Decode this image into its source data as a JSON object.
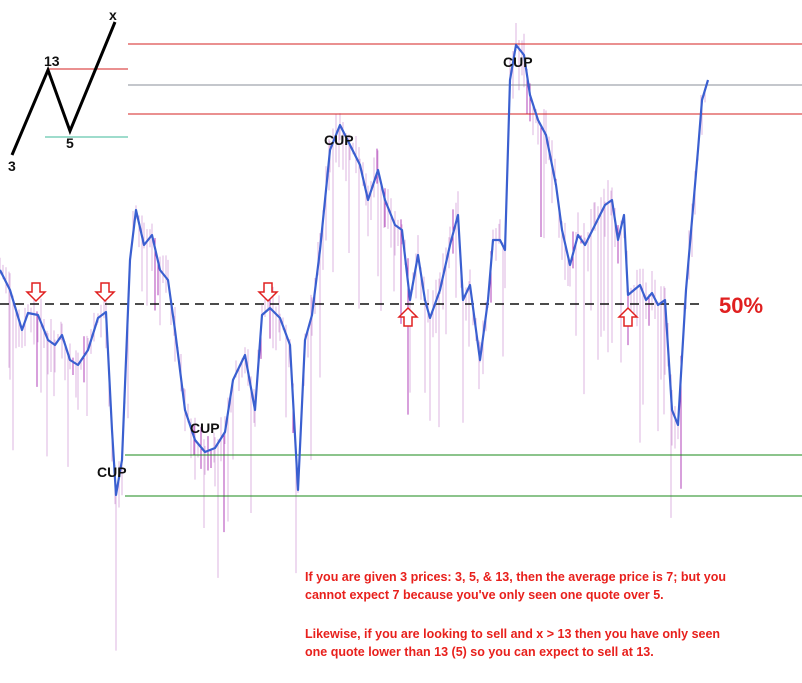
{
  "inset": {
    "labels": {
      "x": "x",
      "top": "13",
      "bottom": "5",
      "start": "3"
    }
  },
  "cups": [
    "CUP",
    "CUP",
    "CUP",
    "CUP"
  ],
  "level_label": "50%",
  "note": {
    "paragraphs": [
      [
        "If you are given 3 prices: 3, 5, & 13, then the average price is 7; but you",
        "cannot expect 7 because you've only seen one quote over 5."
      ],
      [
        "Likewise, if you are looking to sell and x > 13 then you have only seen",
        "one quote lower than 13 (5) so you can expect to sell at 13."
      ]
    ]
  }
}
